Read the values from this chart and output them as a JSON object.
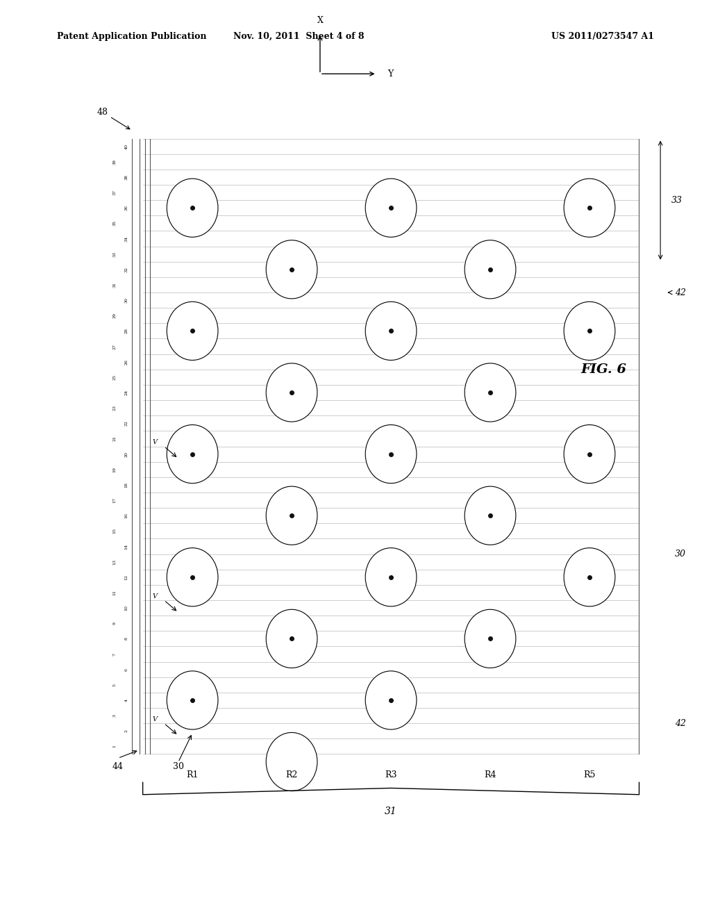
{
  "header_left": "Patent Application Publication",
  "header_mid": "Nov. 10, 2011  Sheet 4 of 8",
  "header_right": "US 2011/0273547 A1",
  "fig_label": "FIG. 6",
  "bg_color": "#ffffff",
  "line_color": "#888888",
  "circle_color": "#ffffff",
  "circle_edge": "#000000",
  "dot_color": "#111111",
  "num_rows": 40,
  "num_cols": 5,
  "row_labels": [
    "1",
    "2",
    "3",
    "4",
    "5",
    "6",
    "7",
    "8",
    "9",
    "10",
    "11",
    "12",
    "13",
    "14",
    "15",
    "16",
    "17",
    "18",
    "19",
    "20",
    "21",
    "22",
    "23",
    "24",
    "25",
    "26",
    "27",
    "28",
    "29",
    "30",
    "31",
    "32",
    "33",
    "34",
    "35",
    "36",
    "37",
    "38",
    "39",
    "40"
  ],
  "col_labels": [
    "R1",
    "R2",
    "R3",
    "R4",
    "R5"
  ],
  "label_48": "48",
  "label_33": "33",
  "label_42_top": "42",
  "label_42_bot": "42",
  "label_30_right": "30",
  "label_30_bot": "30",
  "label_44": "44",
  "label_31": "31"
}
